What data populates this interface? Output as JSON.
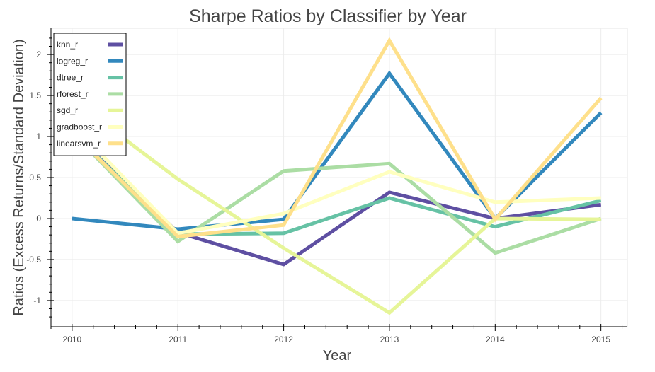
{
  "chart_data": {
    "type": "line",
    "title": "Sharpe Ratios by Classifier by Year",
    "xlabel": "Year",
    "ylabel": "Ratios (Excess Returns/Standard Deviation)",
    "categories": [
      "2010",
      "2011",
      "2012",
      "2013",
      "2014",
      "2015"
    ],
    "x": [
      2010,
      2011,
      2012,
      2013,
      2014,
      2015
    ],
    "xlim": [
      2009.8,
      2015.25
    ],
    "ylim": [
      -1.32,
      2.32
    ],
    "yticks": [
      -1,
      -0.5,
      0,
      0.5,
      1,
      1.5,
      2
    ],
    "ytick_labels": [
      "-1",
      "-0.5",
      "0",
      "0.5",
      "1",
      "1.5",
      "2"
    ],
    "grid": true,
    "legend_position": "top-left",
    "series": [
      {
        "name": "knn_r",
        "color": "#5e4fa2",
        "values": [
          1.05,
          -0.17,
          -0.56,
          0.32,
          0.0,
          0.17
        ]
      },
      {
        "name": "logreg_r",
        "color": "#3288bd",
        "values": [
          0.0,
          -0.13,
          -0.01,
          1.77,
          0.0,
          1.29
        ]
      },
      {
        "name": "dtree_r",
        "color": "#66c2a5",
        "values": [
          1.05,
          -0.19,
          -0.18,
          0.25,
          -0.1,
          0.22
        ]
      },
      {
        "name": "rforest_r",
        "color": "#abdda4",
        "values": [
          1.05,
          -0.28,
          0.58,
          0.67,
          -0.42,
          0.0
        ]
      },
      {
        "name": "sgd_r",
        "color": "#e6f598",
        "values": [
          1.45,
          0.48,
          -0.36,
          -1.15,
          0.0,
          -0.01
        ]
      },
      {
        "name": "gradboost_r",
        "color": "#ffffbf",
        "values": [
          1.15,
          -0.18,
          0.06,
          0.57,
          0.2,
          0.25
        ]
      },
      {
        "name": "linearsvm_r",
        "color": "#fee08b",
        "values": [
          1.05,
          -0.22,
          -0.08,
          2.17,
          -0.01,
          1.47
        ]
      }
    ]
  }
}
